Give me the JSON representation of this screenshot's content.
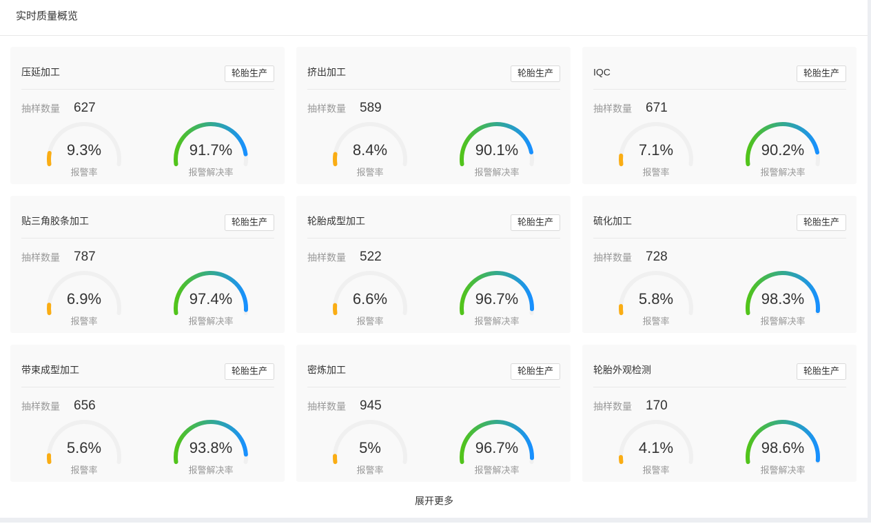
{
  "header": {
    "title": "实时质量概览"
  },
  "cards": [
    {
      "title": "压延加工",
      "tag": "轮胎生产",
      "sample_label": "抽样数量",
      "sample_count": 627,
      "alarm_rate": {
        "value": 9.3,
        "label": "9.3%"
      },
      "alarm_rate_label": "报警率",
      "resolve_rate": {
        "value": 91.7,
        "label": "91.7%"
      },
      "resolve_rate_label": "报警解决率"
    },
    {
      "title": "挤出加工",
      "tag": "轮胎生产",
      "sample_label": "抽样数量",
      "sample_count": 589,
      "alarm_rate": {
        "value": 8.4,
        "label": "8.4%"
      },
      "alarm_rate_label": "报警率",
      "resolve_rate": {
        "value": 90.1,
        "label": "90.1%"
      },
      "resolve_rate_label": "报警解决率"
    },
    {
      "title": "IQC",
      "tag": "轮胎生产",
      "sample_label": "抽样数量",
      "sample_count": 671,
      "alarm_rate": {
        "value": 7.1,
        "label": "7.1%"
      },
      "alarm_rate_label": "报警率",
      "resolve_rate": {
        "value": 90.2,
        "label": "90.2%"
      },
      "resolve_rate_label": "报警解决率"
    },
    {
      "title": "贴三角胶条加工",
      "tag": "轮胎生产",
      "sample_label": "抽样数量",
      "sample_count": 787,
      "alarm_rate": {
        "value": 6.9,
        "label": "6.9%"
      },
      "alarm_rate_label": "报警率",
      "resolve_rate": {
        "value": 97.4,
        "label": "97.4%"
      },
      "resolve_rate_label": "报警解决率"
    },
    {
      "title": "轮胎成型加工",
      "tag": "轮胎生产",
      "sample_label": "抽样数量",
      "sample_count": 522,
      "alarm_rate": {
        "value": 6.6,
        "label": "6.6%"
      },
      "alarm_rate_label": "报警率",
      "resolve_rate": {
        "value": 96.7,
        "label": "96.7%"
      },
      "resolve_rate_label": "报警解决率"
    },
    {
      "title": "硫化加工",
      "tag": "轮胎生产",
      "sample_label": "抽样数量",
      "sample_count": 728,
      "alarm_rate": {
        "value": 5.8,
        "label": "5.8%"
      },
      "alarm_rate_label": "报警率",
      "resolve_rate": {
        "value": 98.3,
        "label": "98.3%"
      },
      "resolve_rate_label": "报警解决率"
    },
    {
      "title": "带束成型加工",
      "tag": "轮胎生产",
      "sample_label": "抽样数量",
      "sample_count": 656,
      "alarm_rate": {
        "value": 5.6,
        "label": "5.6%"
      },
      "alarm_rate_label": "报警率",
      "resolve_rate": {
        "value": 93.8,
        "label": "93.8%"
      },
      "resolve_rate_label": "报警解决率"
    },
    {
      "title": "密炼加工",
      "tag": "轮胎生产",
      "sample_label": "抽样数量",
      "sample_count": 945,
      "alarm_rate": {
        "value": 5,
        "label": "5%"
      },
      "alarm_rate_label": "报警率",
      "resolve_rate": {
        "value": 96.7,
        "label": "96.7%"
      },
      "resolve_rate_label": "报警解决率"
    },
    {
      "title": "轮胎外观检测",
      "tag": "轮胎生产",
      "sample_label": "抽样数量",
      "sample_count": 170,
      "alarm_rate": {
        "value": 4.1,
        "label": "4.1%"
      },
      "alarm_rate_label": "报警率",
      "resolve_rate": {
        "value": 98.6,
        "label": "98.6%"
      },
      "resolve_rate_label": "报警解决率"
    }
  ],
  "footer": {
    "expand": "展开更多"
  }
}
